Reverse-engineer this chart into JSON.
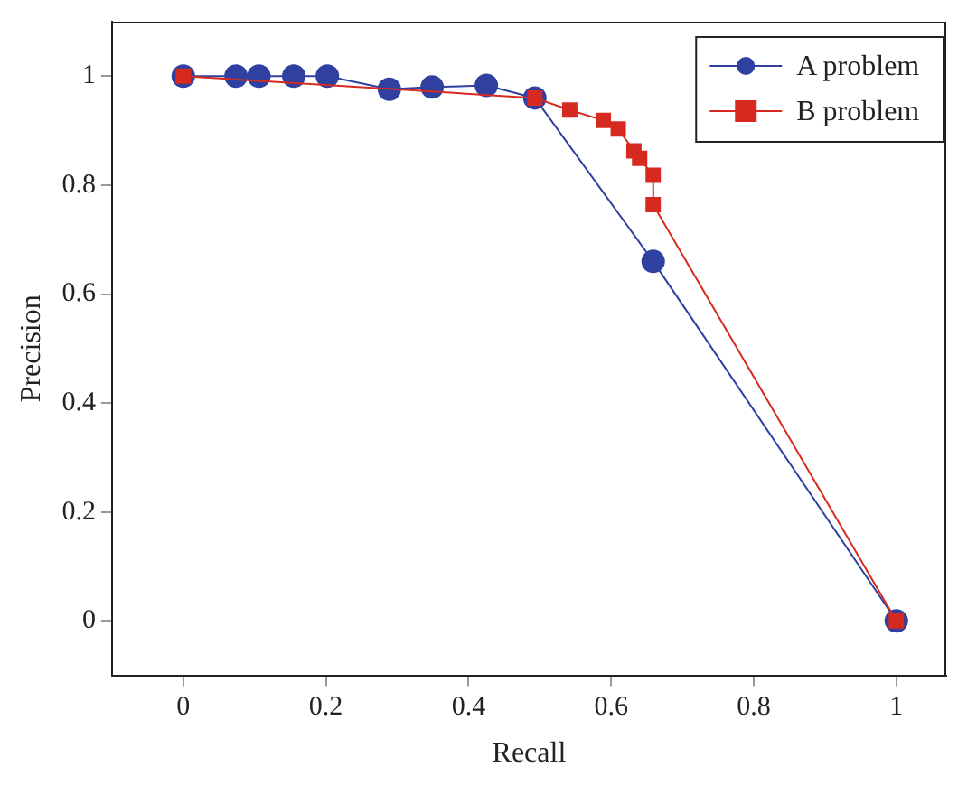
{
  "chart_data": {
    "type": "line",
    "xlabel": "Recall",
    "ylabel": "Precision",
    "xlim": [
      -0.1,
      1.07
    ],
    "ylim": [
      -0.1,
      1.1
    ],
    "xticks": [
      0,
      0.2,
      0.4,
      0.6,
      0.8,
      1
    ],
    "yticks": [
      0,
      0.2,
      0.4,
      0.6,
      0.8,
      1
    ],
    "grid": false,
    "legend": "top right",
    "line_style": "solid",
    "series": [
      {
        "name": "A problem",
        "color": "#3040a0",
        "marker": "circle",
        "x": [
          0,
          0.074,
          0.106,
          0.155,
          0.202,
          0.289,
          0.349,
          0.425,
          0.493,
          0.659,
          1
        ],
        "values": [
          1,
          1,
          1,
          1,
          1,
          0.976,
          0.98,
          0.983,
          0.96,
          0.66,
          0
        ]
      },
      {
        "name": "B problem",
        "color": "#d62a20",
        "marker": "square",
        "x": [
          0,
          0.493,
          0.542,
          0.589,
          0.61,
          0.632,
          0.64,
          0.659,
          0.659,
          1
        ],
        "values": [
          1,
          0.96,
          0.938,
          0.919,
          0.903,
          0.863,
          0.849,
          0.818,
          0.764,
          0
        ]
      }
    ]
  }
}
